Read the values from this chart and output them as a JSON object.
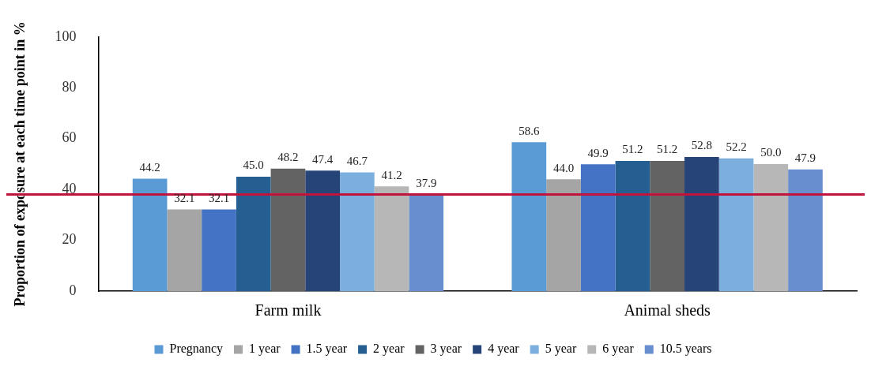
{
  "chart_data": {
    "type": "bar",
    "ylabel": "Proportion of exposure at each time point in %",
    "categories": [
      "Farm milk",
      "Animal sheds"
    ],
    "series": [
      {
        "name": "Pregnancy",
        "color": "#5b9bd5",
        "values": [
          44.2,
          58.6
        ]
      },
      {
        "name": "1 year",
        "color": "#a5a5a5",
        "values": [
          32.1,
          44.0
        ]
      },
      {
        "name": "1.5 year",
        "color": "#4472c4",
        "values": [
          32.1,
          49.9
        ]
      },
      {
        "name": "2 year",
        "color": "#255e91",
        "values": [
          45.0,
          51.2
        ]
      },
      {
        "name": "3 year",
        "color": "#636363",
        "values": [
          48.2,
          51.2
        ]
      },
      {
        "name": "4 year",
        "color": "#264478",
        "values": [
          47.4,
          52.8
        ]
      },
      {
        "name": "5 year",
        "color": "#7cafdd",
        "values": [
          46.7,
          52.2
        ]
      },
      {
        "name": "6 year",
        "color": "#b7b7b7",
        "values": [
          41.2,
          50.0
        ]
      },
      {
        "name": "10.5 years",
        "color": "#698ed0",
        "values": [
          37.9,
          47.9
        ]
      }
    ],
    "value_labels": [
      [
        "44.2",
        "58.6"
      ],
      [
        "32.1",
        "44.0"
      ],
      [
        "32.1",
        "49.9"
      ],
      [
        "45.0",
        "51.2"
      ],
      [
        "48.2",
        "51.2"
      ],
      [
        "47.4",
        "52.8"
      ],
      [
        "46.7",
        "52.2"
      ],
      [
        "41.2",
        "50.0"
      ],
      [
        "37.9",
        "47.9"
      ]
    ],
    "ylim": [
      0,
      100
    ],
    "yticks": [
      0,
      20,
      40,
      60,
      80,
      100
    ],
    "grid": false,
    "legend": "bottom",
    "ref_lines": [
      {
        "axis": "y",
        "value": 38,
        "color": "#c0143c"
      }
    ]
  }
}
